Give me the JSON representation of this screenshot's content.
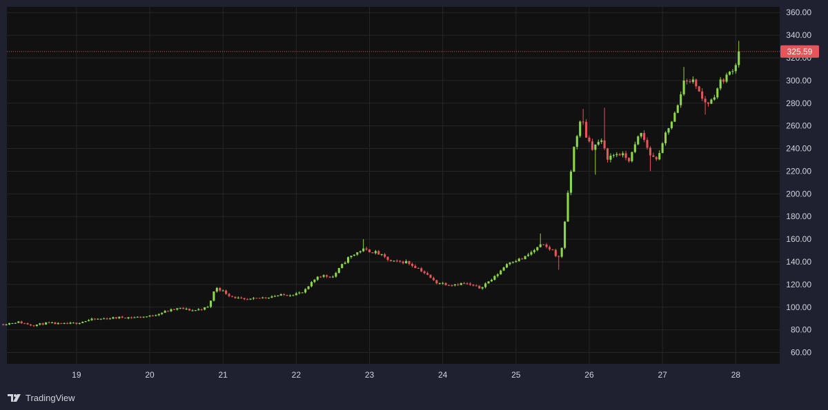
{
  "brand": {
    "name": "TradingView",
    "icon": "tradingview-logo-icon"
  },
  "colors": {
    "background": "#1f2130",
    "plot_background": "#111111",
    "grid": "#262626",
    "up": "#8bd848",
    "down": "#e5555a",
    "text": "#d1d4dc",
    "last_price_line": "#e5555a"
  },
  "chart_data": {
    "type": "candlestick",
    "title": "",
    "xlabel": "",
    "ylabel": "",
    "ylim": [
      50,
      365
    ],
    "xlim": [
      18.05,
      28.6
    ],
    "x_ticks": [
      "19",
      "20",
      "21",
      "22",
      "23",
      "24",
      "25",
      "26",
      "27",
      "28"
    ],
    "y_ticks": [
      "60.00",
      "80.00",
      "100.00",
      "120.00",
      "140.00",
      "160.00",
      "180.00",
      "200.00",
      "220.00",
      "240.00",
      "260.00",
      "280.00",
      "300.00",
      "320.00",
      "340.00",
      "360.00"
    ],
    "last_price": 325.59,
    "last_price_label": "325.59",
    "grid": true,
    "anchors": [
      [
        18.0,
        85
      ],
      [
        18.2,
        87
      ],
      [
        18.4,
        84
      ],
      [
        18.6,
        86
      ],
      [
        18.8,
        85
      ],
      [
        19.0,
        86
      ],
      [
        19.2,
        89
      ],
      [
        19.4,
        90
      ],
      [
        19.6,
        91
      ],
      [
        19.8,
        91
      ],
      [
        20.0,
        92
      ],
      [
        20.2,
        96
      ],
      [
        20.4,
        99
      ],
      [
        20.6,
        97
      ],
      [
        20.8,
        100
      ],
      [
        20.9,
        118
      ],
      [
        21.1,
        110
      ],
      [
        21.3,
        106
      ],
      [
        21.5,
        108
      ],
      [
        21.7,
        110
      ],
      [
        21.9,
        111
      ],
      [
        22.1,
        113
      ],
      [
        22.3,
        128
      ],
      [
        22.5,
        127
      ],
      [
        22.7,
        143
      ],
      [
        22.9,
        151
      ],
      [
        23.1,
        148
      ],
      [
        23.3,
        140
      ],
      [
        23.5,
        140
      ],
      [
        23.7,
        133
      ],
      [
        23.9,
        122
      ],
      [
        24.1,
        120
      ],
      [
        24.3,
        121
      ],
      [
        24.5,
        117
      ],
      [
        24.7,
        126
      ],
      [
        24.9,
        140
      ],
      [
        25.1,
        143
      ],
      [
        25.2,
        148
      ],
      [
        25.35,
        155
      ],
      [
        25.5,
        150
      ],
      [
        25.58,
        143
      ],
      [
        25.62,
        150
      ],
      [
        25.7,
        195
      ],
      [
        25.8,
        245
      ],
      [
        25.9,
        268
      ],
      [
        25.95,
        252
      ],
      [
        26.05,
        240
      ],
      [
        26.15,
        248
      ],
      [
        26.25,
        232
      ],
      [
        26.4,
        236
      ],
      [
        26.55,
        230
      ],
      [
        26.7,
        255
      ],
      [
        26.85,
        232
      ],
      [
        26.95,
        232
      ],
      [
        27.05,
        255
      ],
      [
        27.2,
        275
      ],
      [
        27.3,
        302
      ],
      [
        27.45,
        298
      ],
      [
        27.55,
        282
      ],
      [
        27.65,
        280
      ],
      [
        27.8,
        300
      ],
      [
        27.9,
        305
      ],
      [
        28.0,
        315
      ],
      [
        28.05,
        330
      ],
      [
        28.08,
        326
      ]
    ],
    "spikes": [
      [
        22.9,
        160,
        0
      ],
      [
        23.5,
        142,
        0
      ],
      [
        25.35,
        165,
        0
      ],
      [
        25.6,
        133,
        1
      ],
      [
        25.9,
        275,
        0
      ],
      [
        26.1,
        217,
        1
      ],
      [
        26.2,
        276,
        0
      ],
      [
        26.85,
        220,
        1
      ],
      [
        27.3,
        312,
        0
      ],
      [
        27.6,
        270,
        1
      ],
      [
        28.05,
        335,
        0
      ]
    ]
  }
}
